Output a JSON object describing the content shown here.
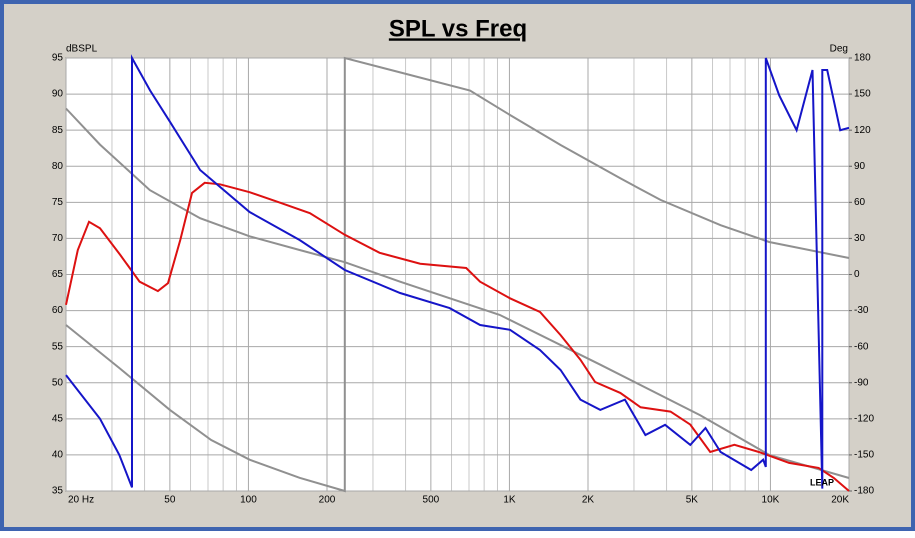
{
  "chart_data": {
    "type": "line",
    "title": "SPL vs Freq",
    "y_label": "dBSPL",
    "y2_label": "Deg",
    "logo": "LEAP",
    "xscale": "log",
    "grid": true,
    "xlim": [
      20,
      20000
    ],
    "ylim": [
      35,
      95
    ],
    "y2lim": [
      -180,
      180
    ],
    "xticks": [
      {
        "value": 20,
        "label": "20 Hz"
      },
      50,
      100,
      200,
      500,
      {
        "value": 1000,
        "label": "1K"
      },
      {
        "value": 2000,
        "label": "2K"
      },
      {
        "value": 5000,
        "label": "5K"
      },
      {
        "value": 10000,
        "label": "10K"
      },
      {
        "value": 20000,
        "label": "20K"
      }
    ],
    "xminorticks": [
      30,
      40,
      60,
      70,
      80,
      90,
      300,
      400,
      600,
      700,
      800,
      900,
      3000,
      4000,
      6000,
      7000,
      8000,
      9000
    ],
    "yticks": [
      35,
      40,
      45,
      50,
      55,
      60,
      65,
      70,
      75,
      80,
      85,
      90,
      95
    ],
    "y2ticks": [
      -180,
      -150,
      -120,
      -90,
      -60,
      -30,
      0,
      30,
      60,
      90,
      120,
      150,
      180
    ],
    "series": [
      {
        "color": "#909090",
        "axis": "y",
        "x": [
          20,
          27,
          41.9,
          65.3,
          101,
          157,
          234,
          381,
          918,
          2230,
          5380,
          9890,
          20000
        ],
        "values": [
          88,
          83,
          76.7,
          72.8,
          70.3,
          68.4,
          66.7,
          64,
          59.4,
          52.5,
          45.5,
          40,
          36.8
        ]
      },
      {
        "color": "#909090",
        "axis": "y2",
        "x": [
          20,
          32,
          50,
          72,
          101,
          157,
          234,
          234,
          381,
          706,
          1005,
          1570,
          2660,
          3790,
          6440,
          9890,
          20000
        ],
        "values": [
          -42,
          -77.7,
          -112.6,
          -137.6,
          -154,
          -169,
          -180,
          180,
          168,
          153,
          132.6,
          107.7,
          80,
          62,
          41,
          27,
          13.7
        ]
      },
      {
        "color": "#dd1111",
        "axis": "y",
        "x": [
          20,
          22.2,
          24.5,
          27,
          32.3,
          38.3,
          45,
          49.2,
          54.8,
          60.8,
          68,
          77.8,
          101,
          131,
          172,
          234,
          318,
          455,
          683,
          772,
          1005,
          1310,
          1570,
          1870,
          2130,
          2660,
          3180,
          4140,
          4930,
          5880,
          7280,
          9030,
          11790,
          15300,
          17500,
          20000
        ],
        "values": [
          60.8,
          68.4,
          72.3,
          71.4,
          67.7,
          64,
          62.7,
          63.8,
          69.8,
          76.3,
          77.7,
          77.5,
          76.4,
          75,
          73.5,
          70.5,
          68,
          66.5,
          65.9,
          64,
          61.7,
          59.8,
          56.6,
          53.2,
          50.1,
          48.6,
          46.6,
          46,
          44.2,
          40.4,
          41.4,
          40.4,
          38.9,
          38.2,
          36.8,
          35
        ]
      },
      {
        "color": "#1515c8",
        "axis": "y2",
        "x": [
          20,
          27,
          32,
          35.8,
          35.8,
          42,
          50,
          65.3,
          101,
          157,
          234,
          381,
          590,
          772,
          1005,
          1310,
          1570,
          1870,
          2230,
          2770,
          3320,
          3950,
          4930,
          5640,
          6440,
          8440,
          9380,
          9600,
          9600,
          10800,
          12600,
          14500,
          15800,
          15800,
          16500,
          18500,
          20000
        ],
        "values": [
          -83.6,
          -120,
          -150,
          -177,
          180,
          153,
          127,
          86.9,
          52,
          28.7,
          3.7,
          -15.4,
          -27.9,
          -42,
          -46,
          -62.8,
          -79.4,
          -104,
          -112.6,
          -104,
          -133.4,
          -125,
          -141.7,
          -127.6,
          -147.6,
          -162.5,
          -154,
          -160,
          180,
          149,
          120,
          170,
          -178,
          170,
          170,
          120,
          122
        ]
      }
    ]
  }
}
